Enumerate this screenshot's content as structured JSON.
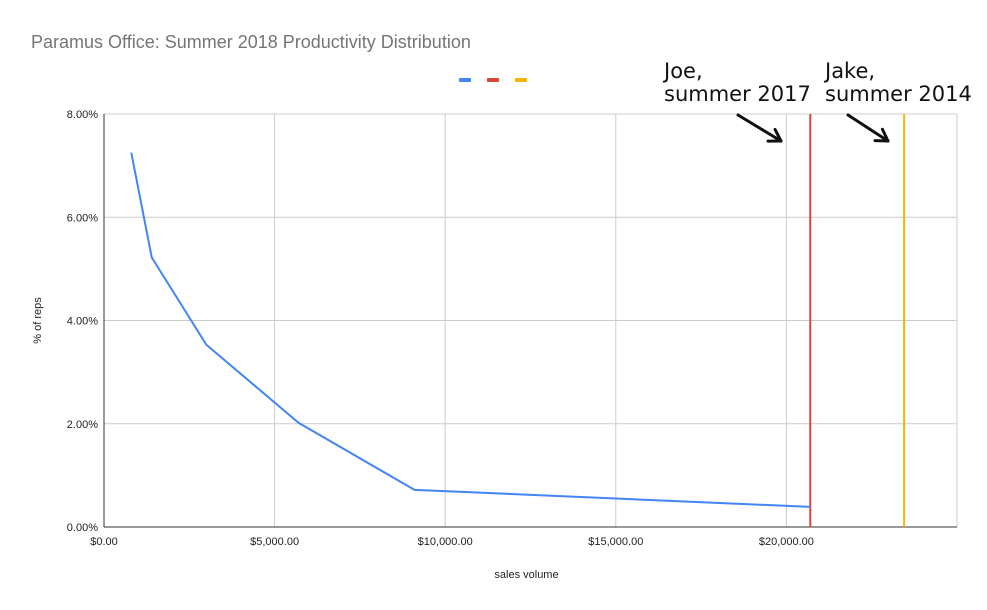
{
  "chart_data": {
    "type": "line",
    "title": "Paramus Office: Summer 2018 Productivity Distribution",
    "xlabel": "sales volume",
    "ylabel": "% of reps",
    "xlim": [
      0,
      25000
    ],
    "ylim": [
      0,
      8
    ],
    "x_ticks": [
      0,
      5000,
      10000,
      15000,
      20000
    ],
    "x_tick_labels": [
      "$0.00",
      "$5,000.00",
      "$10,000.00",
      "$15,000.00",
      "$20,000.00"
    ],
    "y_ticks": [
      0,
      2,
      4,
      6,
      8
    ],
    "y_tick_labels": [
      "0.00%",
      "2.00%",
      "4.00%",
      "6.00%",
      "8.00%"
    ],
    "grid": true,
    "legend": "top-center",
    "series": [
      {
        "color": "#4285f4",
        "x": [
          800,
          1400,
          3000,
          5700,
          9100,
          20700
        ],
        "y": [
          7.25,
          5.22,
          3.53,
          2.02,
          0.72,
          0.39
        ]
      }
    ],
    "vertical_lines": [
      {
        "x": 20700,
        "color": "#db4437",
        "annotation": [
          "Joe,",
          "summer 2017"
        ]
      },
      {
        "x": 23450,
        "color": "#f4b400",
        "annotation": [
          "Jake,",
          "summer 2014"
        ]
      }
    ]
  }
}
